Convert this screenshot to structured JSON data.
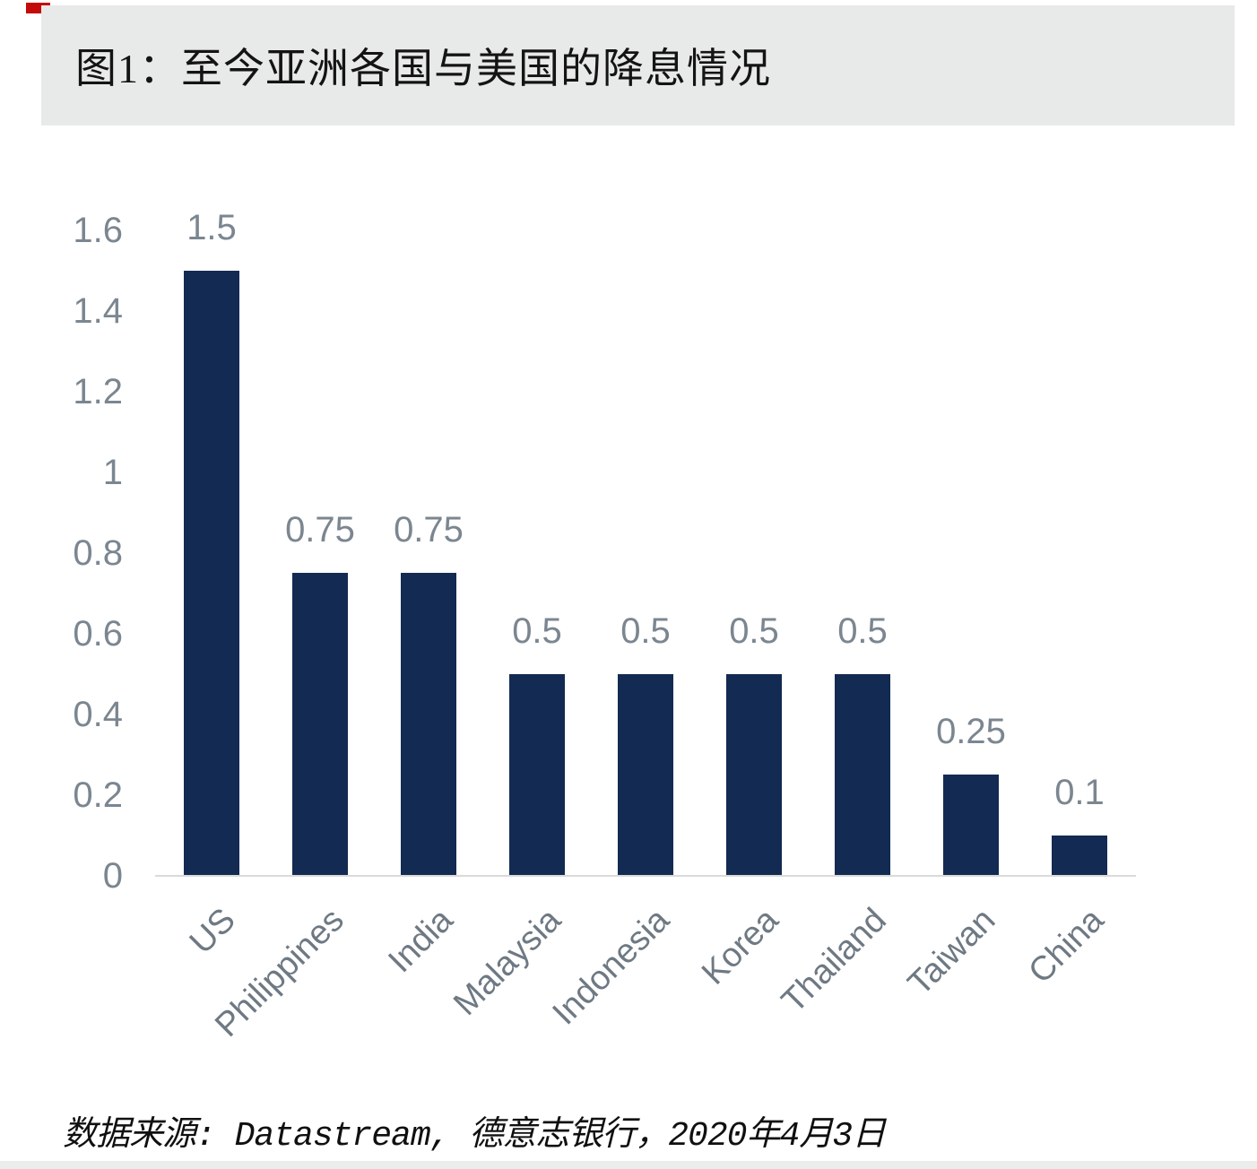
{
  "page": {
    "title": "图1：至今亚洲各国与美国的降息情况",
    "source_note": "数据来源: Datastream, 德意志志银行，2020年4月3日"
  },
  "colors": {
    "bar": "#132a52",
    "title_band_bg": "#e7eae9",
    "title_text": "#141414",
    "tick_label": "#7b8690",
    "value_label": "#7b8690",
    "category_label": "#6e7983",
    "axis_line": "#d8dbda",
    "source_text": "#101010",
    "bottom_strip": "#eaedec",
    "corner_mark": "#c40a0a"
  },
  "chart_data": {
    "type": "bar",
    "title": "图1：至今亚洲各国与美国的降息情况",
    "categories": [
      "US",
      "Philippines",
      "India",
      "Malaysia",
      "Indonesia",
      "Korea",
      "Thailand",
      "Taiwan",
      "China"
    ],
    "values": [
      1.5,
      0.75,
      0.75,
      0.5,
      0.5,
      0.5,
      0.5,
      0.25,
      0.1
    ],
    "value_labels": [
      "1.5",
      "0.75",
      "0.75",
      "0.5",
      "0.5",
      "0.5",
      "0.5",
      "0.25",
      "0.1"
    ],
    "ytick_values": [
      0,
      0.2,
      0.4,
      0.6,
      0.8,
      1,
      1.2,
      1.4,
      1.6
    ],
    "ytick_labels": [
      "0",
      "0.2",
      "0.4",
      "0.6",
      "0.8",
      "1",
      "1.2",
      "1.4",
      "1.6"
    ],
    "ylim": [
      0,
      1.6
    ],
    "xlabel": "",
    "ylabel": "",
    "grid": false,
    "legend": "none",
    "bar_color": "#132a52",
    "source": "数据来源: Datastream, 德意志银行，2020年4月3日"
  }
}
